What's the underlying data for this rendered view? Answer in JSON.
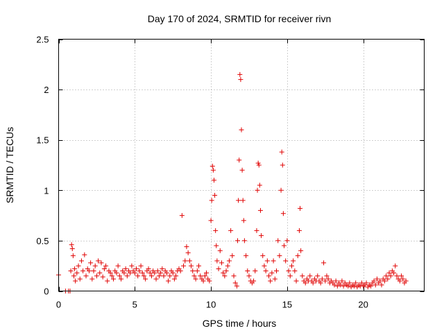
{
  "chart_data": {
    "type": "scatter",
    "title": "Day 170 of 2024, SRMTID for receiver rivn",
    "xlabel": "GPS time / hours",
    "ylabel": "SRMTID / TECUs",
    "xlim": [
      0,
      24
    ],
    "ylim": [
      0,
      2.5
    ],
    "xticks": [
      0,
      5,
      10,
      15,
      20
    ],
    "xtick_labels": [
      "0",
      "5",
      "10",
      "15",
      "20"
    ],
    "yticks": [
      0,
      0.5,
      1,
      1.5,
      2,
      2.5
    ],
    "ytick_labels": [
      "0",
      "0.5",
      "1",
      "1.5",
      "2",
      "2.5"
    ],
    "grid": true,
    "marker": "+",
    "series": [
      {
        "name": "SRMTID",
        "color": "#e00000",
        "points": [
          [
            0.0,
            0.16
          ],
          [
            0.45,
            0.0
          ],
          [
            0.65,
            0.0
          ],
          [
            0.75,
            0.0
          ],
          [
            0.8,
            0.2
          ],
          [
            0.85,
            0.46
          ],
          [
            0.9,
            0.42
          ],
          [
            0.95,
            0.35
          ],
          [
            1.0,
            0.15
          ],
          [
            1.05,
            0.22
          ],
          [
            1.1,
            0.1
          ],
          [
            1.2,
            0.18
          ],
          [
            1.3,
            0.25
          ],
          [
            1.4,
            0.12
          ],
          [
            1.5,
            0.3
          ],
          [
            1.6,
            0.2
          ],
          [
            1.7,
            0.36
          ],
          [
            1.8,
            0.15
          ],
          [
            1.9,
            0.22
          ],
          [
            2.0,
            0.2
          ],
          [
            2.1,
            0.28
          ],
          [
            2.2,
            0.12
          ],
          [
            2.3,
            0.2
          ],
          [
            2.4,
            0.25
          ],
          [
            2.5,
            0.15
          ],
          [
            2.6,
            0.3
          ],
          [
            2.7,
            0.18
          ],
          [
            2.8,
            0.28
          ],
          [
            2.9,
            0.14
          ],
          [
            3.0,
            0.22
          ],
          [
            3.1,
            0.25
          ],
          [
            3.2,
            0.1
          ],
          [
            3.3,
            0.2
          ],
          [
            3.4,
            0.18
          ],
          [
            3.5,
            0.15
          ],
          [
            3.6,
            0.12
          ],
          [
            3.7,
            0.2
          ],
          [
            3.8,
            0.18
          ],
          [
            3.9,
            0.25
          ],
          [
            4.0,
            0.15
          ],
          [
            4.1,
            0.12
          ],
          [
            4.2,
            0.2
          ],
          [
            4.3,
            0.18
          ],
          [
            4.4,
            0.22
          ],
          [
            4.5,
            0.15
          ],
          [
            4.6,
            0.2
          ],
          [
            4.7,
            0.18
          ],
          [
            4.8,
            0.25
          ],
          [
            4.9,
            0.2
          ],
          [
            5.0,
            0.18
          ],
          [
            5.1,
            0.22
          ],
          [
            5.2,
            0.15
          ],
          [
            5.3,
            0.2
          ],
          [
            5.4,
            0.25
          ],
          [
            5.5,
            0.18
          ],
          [
            5.6,
            0.15
          ],
          [
            5.7,
            0.12
          ],
          [
            5.8,
            0.2
          ],
          [
            5.9,
            0.22
          ],
          [
            6.0,
            0.18
          ],
          [
            6.1,
            0.15
          ],
          [
            6.2,
            0.2
          ],
          [
            6.3,
            0.18
          ],
          [
            6.4,
            0.12
          ],
          [
            6.5,
            0.2
          ],
          [
            6.6,
            0.15
          ],
          [
            6.7,
            0.18
          ],
          [
            6.8,
            0.22
          ],
          [
            6.9,
            0.15
          ],
          [
            7.0,
            0.2
          ],
          [
            7.1,
            0.18
          ],
          [
            7.2,
            0.1
          ],
          [
            7.3,
            0.15
          ],
          [
            7.4,
            0.2
          ],
          [
            7.5,
            0.18
          ],
          [
            7.6,
            0.12
          ],
          [
            7.7,
            0.15
          ],
          [
            7.8,
            0.2
          ],
          [
            7.9,
            0.22
          ],
          [
            8.0,
            0.2
          ],
          [
            8.1,
            0.75
          ],
          [
            8.2,
            0.25
          ],
          [
            8.3,
            0.3
          ],
          [
            8.4,
            0.44
          ],
          [
            8.5,
            0.38
          ],
          [
            8.6,
            0.3
          ],
          [
            8.7,
            0.25
          ],
          [
            8.8,
            0.2
          ],
          [
            8.9,
            0.15
          ],
          [
            9.0,
            0.12
          ],
          [
            9.1,
            0.2
          ],
          [
            9.2,
            0.25
          ],
          [
            9.3,
            0.15
          ],
          [
            9.4,
            0.12
          ],
          [
            9.5,
            0.1
          ],
          [
            9.6,
            0.15
          ],
          [
            9.7,
            0.18
          ],
          [
            9.8,
            0.12
          ],
          [
            9.9,
            0.1
          ],
          [
            10.0,
            0.7
          ],
          [
            10.05,
            0.9
          ],
          [
            10.1,
            1.24
          ],
          [
            10.15,
            1.2
          ],
          [
            10.2,
            1.1
          ],
          [
            10.25,
            0.95
          ],
          [
            10.3,
            0.6
          ],
          [
            10.35,
            0.45
          ],
          [
            10.4,
            0.3
          ],
          [
            10.5,
            0.22
          ],
          [
            10.6,
            0.4
          ],
          [
            10.7,
            0.28
          ],
          [
            10.8,
            0.18
          ],
          [
            10.9,
            0.15
          ],
          [
            11.0,
            0.2
          ],
          [
            11.1,
            0.25
          ],
          [
            11.2,
            0.3
          ],
          [
            11.3,
            0.6
          ],
          [
            11.4,
            0.35
          ],
          [
            11.5,
            0.15
          ],
          [
            11.6,
            0.08
          ],
          [
            11.7,
            0.05
          ],
          [
            11.75,
            0.5
          ],
          [
            11.8,
            0.9
          ],
          [
            11.85,
            1.3
          ],
          [
            11.9,
            2.15
          ],
          [
            11.95,
            2.1
          ],
          [
            12.0,
            1.6
          ],
          [
            12.05,
            1.2
          ],
          [
            12.1,
            0.9
          ],
          [
            12.15,
            0.7
          ],
          [
            12.2,
            0.5
          ],
          [
            12.3,
            0.35
          ],
          [
            12.4,
            0.2
          ],
          [
            12.5,
            0.15
          ],
          [
            12.6,
            0.1
          ],
          [
            12.7,
            0.08
          ],
          [
            12.8,
            0.1
          ],
          [
            12.9,
            0.2
          ],
          [
            13.0,
            0.6
          ],
          [
            13.05,
            1.0
          ],
          [
            13.1,
            1.27
          ],
          [
            13.15,
            1.25
          ],
          [
            13.2,
            1.05
          ],
          [
            13.25,
            0.8
          ],
          [
            13.3,
            0.55
          ],
          [
            13.4,
            0.35
          ],
          [
            13.5,
            0.25
          ],
          [
            13.6,
            0.2
          ],
          [
            13.7,
            0.3
          ],
          [
            13.8,
            0.15
          ],
          [
            13.9,
            0.1
          ],
          [
            14.0,
            0.18
          ],
          [
            14.1,
            0.3
          ],
          [
            14.2,
            0.12
          ],
          [
            14.3,
            0.2
          ],
          [
            14.4,
            0.5
          ],
          [
            14.5,
            0.35
          ],
          [
            14.6,
            1.0
          ],
          [
            14.65,
            1.38
          ],
          [
            14.7,
            1.25
          ],
          [
            14.75,
            0.77
          ],
          [
            14.8,
            0.45
          ],
          [
            14.9,
            0.3
          ],
          [
            15.0,
            0.5
          ],
          [
            15.1,
            0.2
          ],
          [
            15.2,
            0.15
          ],
          [
            15.3,
            0.25
          ],
          [
            15.4,
            0.3
          ],
          [
            15.5,
            0.2
          ],
          [
            15.6,
            0.1
          ],
          [
            15.7,
            0.35
          ],
          [
            15.8,
            0.6
          ],
          [
            15.85,
            0.82
          ],
          [
            15.9,
            0.4
          ],
          [
            16.0,
            0.15
          ],
          [
            16.1,
            0.1
          ],
          [
            16.2,
            0.08
          ],
          [
            16.3,
            0.12
          ],
          [
            16.4,
            0.1
          ],
          [
            16.5,
            0.15
          ],
          [
            16.6,
            0.1
          ],
          [
            16.7,
            0.08
          ],
          [
            16.8,
            0.12
          ],
          [
            16.9,
            0.1
          ],
          [
            17.0,
            0.15
          ],
          [
            17.1,
            0.1
          ],
          [
            17.2,
            0.08
          ],
          [
            17.3,
            0.12
          ],
          [
            17.4,
            0.28
          ],
          [
            17.5,
            0.1
          ],
          [
            17.6,
            0.15
          ],
          [
            17.7,
            0.12
          ],
          [
            17.8,
            0.08
          ],
          [
            17.9,
            0.1
          ],
          [
            18.0,
            0.08
          ],
          [
            18.1,
            0.06
          ],
          [
            18.2,
            0.1
          ],
          [
            18.3,
            0.05
          ],
          [
            18.4,
            0.08
          ],
          [
            18.5,
            0.06
          ],
          [
            18.6,
            0.1
          ],
          [
            18.7,
            0.05
          ],
          [
            18.8,
            0.08
          ],
          [
            18.9,
            0.06
          ],
          [
            19.0,
            0.05
          ],
          [
            19.1,
            0.08
          ],
          [
            19.2,
            0.04
          ],
          [
            19.3,
            0.06
          ],
          [
            19.4,
            0.05
          ],
          [
            19.5,
            0.08
          ],
          [
            19.6,
            0.04
          ],
          [
            19.7,
            0.06
          ],
          [
            19.8,
            0.05
          ],
          [
            19.9,
            0.08
          ],
          [
            20.0,
            0.05
          ],
          [
            20.1,
            0.06
          ],
          [
            20.2,
            0.08
          ],
          [
            20.3,
            0.04
          ],
          [
            20.4,
            0.06
          ],
          [
            20.5,
            0.05
          ],
          [
            20.6,
            0.08
          ],
          [
            20.7,
            0.1
          ],
          [
            20.8,
            0.06
          ],
          [
            20.9,
            0.12
          ],
          [
            21.0,
            0.08
          ],
          [
            21.1,
            0.1
          ],
          [
            21.2,
            0.06
          ],
          [
            21.3,
            0.12
          ],
          [
            21.4,
            0.1
          ],
          [
            21.5,
            0.15
          ],
          [
            21.6,
            0.12
          ],
          [
            21.7,
            0.18
          ],
          [
            21.8,
            0.15
          ],
          [
            21.9,
            0.2
          ],
          [
            22.0,
            0.18
          ],
          [
            22.1,
            0.25
          ],
          [
            22.2,
            0.15
          ],
          [
            22.3,
            0.12
          ],
          [
            22.4,
            0.1
          ],
          [
            22.5,
            0.15
          ],
          [
            22.6,
            0.12
          ],
          [
            22.7,
            0.08
          ],
          [
            22.8,
            0.1
          ]
        ]
      }
    ]
  }
}
